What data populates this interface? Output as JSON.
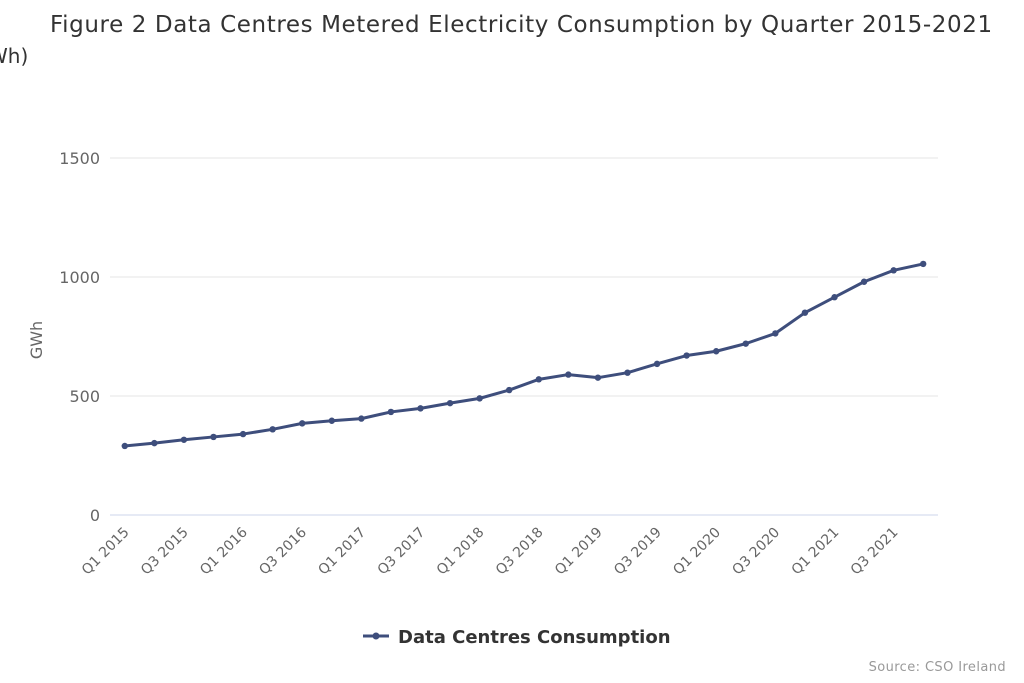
{
  "header": {
    "title": "Figure 2 Data Centres Metered Electricity Consumption by Quarter 2015-2021",
    "subtitle": "Wh)"
  },
  "footer": {
    "source": "Source: CSO Ireland"
  },
  "colors": {
    "series": "#3e4e7c",
    "grid": "#e6e6e6",
    "axis": "#ccd6eb"
  },
  "chart_data": {
    "type": "line",
    "title": "Figure 2 Data Centres Metered Electricity Consumption by Quarter 2015-2021",
    "ylabel": "GWh",
    "xlabel": "",
    "ylim": [
      0,
      1500
    ],
    "yticks": [
      0,
      500,
      1000,
      1500
    ],
    "grid": true,
    "legend_position": "bottom",
    "x": [
      "Q1 2015",
      "Q2 2015",
      "Q3 2015",
      "Q4 2015",
      "Q1 2016",
      "Q2 2016",
      "Q3 2016",
      "Q4 2016",
      "Q1 2017",
      "Q2 2017",
      "Q3 2017",
      "Q4 2017",
      "Q1 2018",
      "Q2 2018",
      "Q3 2018",
      "Q4 2018",
      "Q1 2019",
      "Q2 2019",
      "Q3 2019",
      "Q4 2019",
      "Q1 2020",
      "Q2 2020",
      "Q3 2020",
      "Q4 2020",
      "Q1 2021",
      "Q2 2021",
      "Q3 2021",
      "Q4 2021"
    ],
    "xtick_labels": [
      "Q1 2015",
      "Q3 2015",
      "Q1 2016",
      "Q3 2016",
      "Q1 2017",
      "Q3 2017",
      "Q1 2018",
      "Q3 2018",
      "Q1 2019",
      "Q3 2019",
      "Q1 2020",
      "Q3 2020",
      "Q1 2021",
      "Q3 2021"
    ],
    "series": [
      {
        "name": "Data Centres Consumption",
        "values": [
          290,
          302,
          316,
          328,
          340,
          360,
          385,
          396,
          405,
          433,
          448,
          470,
          490,
          525,
          570,
          590,
          577,
          598,
          635,
          670,
          688,
          720,
          763,
          850,
          915,
          980,
          1028,
          1055
        ]
      }
    ]
  }
}
